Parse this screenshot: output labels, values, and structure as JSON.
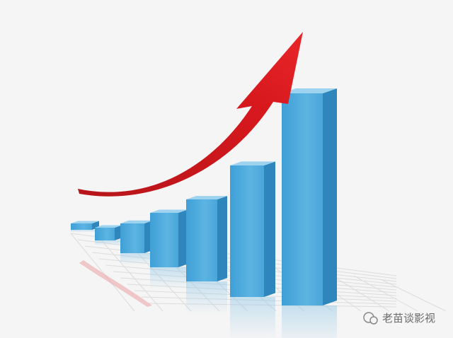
{
  "watermark": {
    "text": "老苗谈影视"
  }
}
